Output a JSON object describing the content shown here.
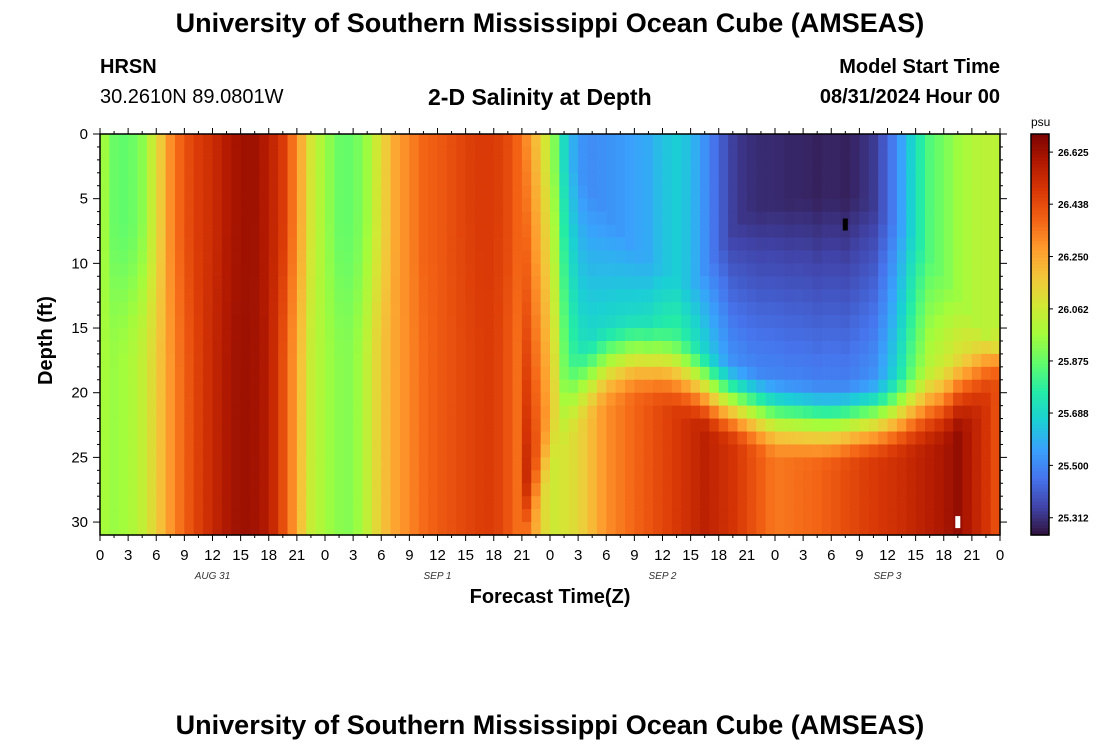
{
  "header": {
    "title": "University of Southern Mississippi Ocean Cube (AMSEAS)",
    "station": "HRSN",
    "coords": "30.2610N  89.0801W",
    "plot_title": "2-D Salinity at Depth",
    "model_start_label": "Model Start Time",
    "model_start_value": "08/31/2024 Hour 00"
  },
  "footer": {
    "title": "University of Southern Mississippi Ocean Cube (AMSEAS)"
  },
  "chart_data": {
    "type": "heatmap",
    "title": "2-D Salinity at Depth",
    "xlabel": "Forecast Time(Z)",
    "ylabel": "Depth (ft)",
    "units": "psu",
    "x_range_hours": [
      0,
      96
    ],
    "ylim": [
      0,
      31
    ],
    "x_tick_labels": [
      "0",
      "3",
      "6",
      "9",
      "12",
      "15",
      "18",
      "21",
      "0",
      "3",
      "6",
      "9",
      "12",
      "15",
      "18",
      "21",
      "0",
      "3",
      "6",
      "9",
      "12",
      "15",
      "18",
      "21",
      "0",
      "3",
      "6",
      "9",
      "12",
      "15",
      "18",
      "21",
      "0"
    ],
    "day_labels": [
      "AUG 31",
      "SEP 1",
      "SEP 2",
      "SEP 3"
    ],
    "y_ticks": [
      0,
      5,
      10,
      15,
      20,
      25,
      30
    ],
    "colorbar_ticks": [
      "26.625",
      "26.438",
      "26.250",
      "26.062",
      "25.875",
      "25.688",
      "25.500",
      "25.312"
    ],
    "value_range": [
      25.25,
      26.69
    ],
    "colormap": [
      "#30123b",
      "#4145ab",
      "#4675ed",
      "#39a2fc",
      "#1bcfd4",
      "#24eca6",
      "#61fc6c",
      "#a4fc3b",
      "#d1e834",
      "#f3c63a",
      "#fe9b2d",
      "#f36315",
      "#d93806",
      "#b11901",
      "#7a0403"
    ],
    "markers": [
      {
        "name": "minimum",
        "hour": 79.5,
        "depth": 7,
        "color": "#000000"
      },
      {
        "name": "maximum",
        "hour": 91.5,
        "depth": 30,
        "color": "#ffffff"
      }
    ],
    "surface_profile": [
      [
        0,
        26.0
      ],
      [
        1.5,
        25.88
      ],
      [
        3,
        25.86
      ],
      [
        4.5,
        25.93
      ],
      [
        6,
        26.1
      ],
      [
        7.5,
        26.3
      ],
      [
        9,
        26.42
      ],
      [
        10.5,
        26.48
      ],
      [
        12,
        26.52
      ],
      [
        13.5,
        26.58
      ],
      [
        15,
        26.62
      ],
      [
        16.5,
        26.62
      ],
      [
        18,
        26.57
      ],
      [
        19.5,
        26.48
      ],
      [
        21,
        26.3
      ],
      [
        22.5,
        26.08
      ],
      [
        24,
        25.96
      ],
      [
        25.5,
        25.88
      ],
      [
        27,
        25.87
      ],
      [
        28.5,
        25.96
      ],
      [
        30,
        26.12
      ],
      [
        31.5,
        26.25
      ],
      [
        33,
        26.32
      ],
      [
        34.5,
        26.38
      ],
      [
        36,
        26.4
      ],
      [
        37.5,
        26.43
      ],
      [
        39,
        26.46
      ],
      [
        40.5,
        26.48
      ],
      [
        42,
        26.48
      ],
      [
        43.5,
        26.44
      ],
      [
        45,
        26.36
      ],
      [
        46.5,
        26.2
      ],
      [
        48,
        26.02
      ],
      [
        49.5,
        25.7
      ],
      [
        51,
        25.53
      ],
      [
        52.5,
        25.51
      ],
      [
        54,
        25.52
      ],
      [
        55.5,
        25.54
      ],
      [
        57,
        25.56
      ],
      [
        58.5,
        25.58
      ],
      [
        60,
        25.63
      ],
      [
        61.5,
        25.66
      ],
      [
        63,
        25.62
      ],
      [
        64.5,
        25.52
      ],
      [
        66,
        25.42
      ],
      [
        67.5,
        25.34
      ],
      [
        69,
        25.31
      ],
      [
        70.5,
        25.3
      ],
      [
        72,
        25.3
      ],
      [
        73.5,
        25.29
      ],
      [
        75,
        25.29
      ],
      [
        76.5,
        25.28
      ],
      [
        78,
        25.29
      ],
      [
        79.5,
        25.28
      ],
      [
        81,
        25.3
      ],
      [
        82.5,
        25.33
      ],
      [
        84,
        25.42
      ],
      [
        85.5,
        25.56
      ],
      [
        87,
        25.72
      ],
      [
        88.5,
        25.84
      ],
      [
        90,
        25.9
      ],
      [
        91.5,
        25.96
      ],
      [
        93,
        26.0
      ],
      [
        94.5,
        26.02
      ],
      [
        96,
        26.02
      ]
    ],
    "bottom_profile": [
      [
        0,
        25.96
      ],
      [
        6,
        26.18
      ],
      [
        12,
        26.55
      ],
      [
        15,
        26.64
      ],
      [
        18,
        26.58
      ],
      [
        22.5,
        26.02
      ],
      [
        24,
        25.98
      ],
      [
        27,
        25.96
      ],
      [
        30,
        26.22
      ],
      [
        36,
        26.4
      ],
      [
        42,
        26.48
      ],
      [
        46.5,
        26.24
      ],
      [
        48,
        26.05
      ],
      [
        51,
        26.12
      ],
      [
        54,
        26.3
      ],
      [
        57,
        26.38
      ],
      [
        60,
        26.45
      ],
      [
        64.5,
        26.56
      ],
      [
        67.5,
        26.5
      ],
      [
        72,
        26.34
      ],
      [
        76.5,
        26.38
      ],
      [
        81,
        26.46
      ],
      [
        85.5,
        26.52
      ],
      [
        90,
        26.6
      ],
      [
        91.5,
        26.64
      ],
      [
        94.5,
        26.5
      ],
      [
        96,
        26.4
      ]
    ],
    "transition_depth_profile": [
      [
        0,
        31
      ],
      [
        45,
        31
      ],
      [
        48,
        24
      ],
      [
        51,
        20
      ],
      [
        54,
        18.5
      ],
      [
        57,
        18
      ],
      [
        60,
        18.5
      ],
      [
        66,
        21
      ],
      [
        72,
        22.5
      ],
      [
        78,
        23
      ],
      [
        84,
        22.5
      ],
      [
        90,
        21.5
      ],
      [
        93,
        20
      ],
      [
        96,
        18
      ]
    ],
    "deep_dip_center_profile": [
      [
        45,
        0
      ],
      [
        51,
        3
      ],
      [
        57,
        9
      ],
      [
        63,
        12
      ],
      [
        69,
        6
      ],
      [
        75,
        5
      ],
      [
        81,
        5
      ],
      [
        87,
        8
      ],
      [
        93,
        14
      ],
      [
        96,
        17
      ]
    ]
  }
}
